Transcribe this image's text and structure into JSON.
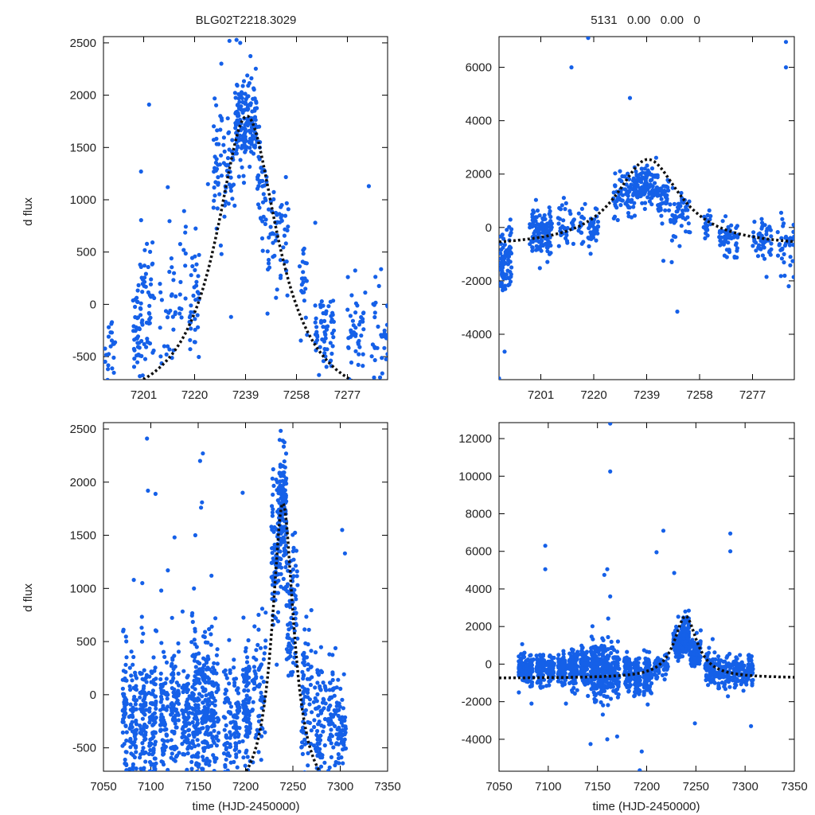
{
  "figure": {
    "left_title": "BLG02T2218.3029",
    "right_title": "5131   0.00   0.00   0",
    "ylabel": "d flux",
    "xlabel": "time (HJD-2450000)",
    "colors": {
      "points": "#1560e8",
      "model": "#111111",
      "frame": "#000000"
    }
  },
  "chart_data": [
    {
      "id": "top-left",
      "type": "scatter",
      "title": "BLG02T2218.3029",
      "xlim": [
        7186,
        7292
      ],
      "ylim": [
        -720,
        2560
      ],
      "xticks": [
        7201,
        7220,
        7239,
        7258,
        7277
      ],
      "yticks": [
        -500,
        0,
        500,
        1000,
        1500,
        2000,
        2500
      ],
      "ylabel": "d flux",
      "model": {
        "t0": 7239.5,
        "peak": 1800,
        "base": -1050,
        "width": 14
      },
      "observation_blocks": [
        {
          "t0": 7186.5,
          "t1": 7190.5,
          "mean": -420,
          "sd": 240,
          "n": 22
        },
        {
          "t0": 7197,
          "t1": 7205,
          "mean": -100,
          "sd": 330,
          "n": 90
        },
        {
          "t0": 7207,
          "t1": 7213,
          "mean": -80,
          "sd": 280,
          "n": 30
        },
        {
          "t0": 7214,
          "t1": 7217,
          "mean": 150,
          "sd": 300,
          "n": 14
        },
        {
          "t0": 7218,
          "t1": 7222,
          "mean": 50,
          "sd": 280,
          "n": 35
        },
        {
          "t0": 7227,
          "t1": 7235,
          "mean": 1250,
          "sd": 380,
          "n": 75
        },
        {
          "t0": 7235,
          "t1": 7243,
          "mean": 1750,
          "sd": 230,
          "n": 160
        },
        {
          "t0": 7243,
          "t1": 7247,
          "mean": 1200,
          "sd": 280,
          "n": 40
        },
        {
          "t0": 7247,
          "t1": 7255,
          "mean": 600,
          "sd": 300,
          "n": 55
        },
        {
          "t0": 7259,
          "t1": 7262,
          "mean": 250,
          "sd": 350,
          "n": 22
        },
        {
          "t0": 7265,
          "t1": 7272,
          "mean": -280,
          "sd": 230,
          "n": 60
        },
        {
          "t0": 7277,
          "t1": 7284,
          "mean": -230,
          "sd": 260,
          "n": 45
        },
        {
          "t0": 7286,
          "t1": 7292,
          "mean": -250,
          "sd": 240,
          "n": 35
        }
      ],
      "outliers": [
        [
          7203,
          1910
        ],
        [
          7233,
          2520
        ],
        [
          7237,
          2500
        ],
        [
          7210,
          1120
        ],
        [
          7285,
          1130
        ],
        [
          7200,
          1270
        ],
        [
          7265,
          780
        ],
        [
          7225,
          1150
        ]
      ]
    },
    {
      "id": "top-right",
      "type": "scatter",
      "title": "5131   0.00   0.00   0",
      "xlim": [
        7186,
        7292
      ],
      "ylim": [
        -5700,
        7150
      ],
      "xticks": [
        7201,
        7220,
        7239,
        7258,
        7277
      ],
      "yticks": [
        -4000,
        -2000,
        0,
        2000,
        4000,
        6000
      ],
      "model": {
        "t0": 7239.5,
        "peak": 2550,
        "base": -750,
        "width": 14
      },
      "observation_blocks": [
        {
          "t0": 7186.5,
          "t1": 7190.5,
          "mean": -1300,
          "sd": 650,
          "n": 80
        },
        {
          "t0": 7197,
          "t1": 7205,
          "mean": -250,
          "sd": 500,
          "n": 120
        },
        {
          "t0": 7207,
          "t1": 7213,
          "mean": -50,
          "sd": 400,
          "n": 35
        },
        {
          "t0": 7214,
          "t1": 7217,
          "mean": 0,
          "sd": 400,
          "n": 14
        },
        {
          "t0": 7218,
          "t1": 7222,
          "mean": -50,
          "sd": 400,
          "n": 35
        },
        {
          "t0": 7227,
          "t1": 7235,
          "mean": 1300,
          "sd": 450,
          "n": 80
        },
        {
          "t0": 7235,
          "t1": 7243,
          "mean": 1650,
          "sd": 350,
          "n": 120
        },
        {
          "t0": 7243,
          "t1": 7247,
          "mean": 1000,
          "sd": 350,
          "n": 40
        },
        {
          "t0": 7247,
          "t1": 7255,
          "mean": 500,
          "sd": 400,
          "n": 50
        },
        {
          "t0": 7259,
          "t1": 7262,
          "mean": 0,
          "sd": 400,
          "n": 18
        },
        {
          "t0": 7265,
          "t1": 7272,
          "mean": -500,
          "sd": 400,
          "n": 55
        },
        {
          "t0": 7277,
          "t1": 7284,
          "mean": -550,
          "sd": 450,
          "n": 55
        },
        {
          "t0": 7286,
          "t1": 7292,
          "mean": -600,
          "sd": 500,
          "n": 40
        }
      ],
      "outliers": [
        [
          7186,
          -5650
        ],
        [
          7188,
          -4650
        ],
        [
          7212,
          6000
        ],
        [
          7218,
          7100
        ],
        [
          7233,
          4850
        ],
        [
          7289,
          6950
        ],
        [
          7289,
          6000
        ],
        [
          7250,
          -3150
        ],
        [
          7248,
          -1300
        ],
        [
          7245,
          -1250
        ],
        [
          7290,
          -2200
        ]
      ]
    },
    {
      "id": "bottom-left",
      "type": "scatter",
      "xlim": [
        7050,
        7350
      ],
      "ylim": [
        -720,
        2560
      ],
      "xticks": [
        7050,
        7100,
        7150,
        7200,
        7250,
        7300,
        7350
      ],
      "yticks": [
        -500,
        0,
        500,
        1000,
        1500,
        2000,
        2500
      ],
      "ylabel": "d flux",
      "xlabel": "time (HJD-2450000)",
      "model": {
        "t0": 7239.5,
        "peak": 1800,
        "base": -1050,
        "width": 14
      },
      "observation_blocks": [
        {
          "t0": 7070,
          "t1": 7075,
          "mean": -200,
          "sd": 370,
          "n": 55
        },
        {
          "t0": 7077,
          "t1": 7085,
          "mean": -250,
          "sd": 300,
          "n": 70
        },
        {
          "t0": 7088,
          "t1": 7096,
          "mean": -180,
          "sd": 350,
          "n": 75
        },
        {
          "t0": 7098,
          "t1": 7106,
          "mean": -230,
          "sd": 330,
          "n": 80
        },
        {
          "t0": 7110,
          "t1": 7118,
          "mean": -220,
          "sd": 300,
          "n": 75
        },
        {
          "t0": 7121,
          "t1": 7130,
          "mean": -150,
          "sd": 330,
          "n": 85
        },
        {
          "t0": 7133,
          "t1": 7141,
          "mean": -250,
          "sd": 300,
          "n": 80
        },
        {
          "t0": 7143,
          "t1": 7152,
          "mean": -150,
          "sd": 370,
          "n": 120
        },
        {
          "t0": 7153,
          "t1": 7162,
          "mean": -120,
          "sd": 360,
          "n": 120
        },
        {
          "t0": 7163,
          "t1": 7172,
          "mean": -200,
          "sd": 350,
          "n": 85
        },
        {
          "t0": 7177,
          "t1": 7185,
          "mean": -250,
          "sd": 300,
          "n": 60
        },
        {
          "t0": 7187,
          "t1": 7194,
          "mean": -300,
          "sd": 260,
          "n": 55
        },
        {
          "t0": 7197,
          "t1": 7205,
          "mean": -50,
          "sd": 350,
          "n": 85
        },
        {
          "t0": 7207,
          "t1": 7222,
          "mean": 100,
          "sd": 350,
          "n": 60
        },
        {
          "t0": 7227,
          "t1": 7235,
          "mean": 1250,
          "sd": 400,
          "n": 75
        },
        {
          "t0": 7235,
          "t1": 7243,
          "mean": 1700,
          "sd": 300,
          "n": 150
        },
        {
          "t0": 7243,
          "t1": 7255,
          "mean": 800,
          "sd": 380,
          "n": 85
        },
        {
          "t0": 7259,
          "t1": 7270,
          "mean": -50,
          "sd": 380,
          "n": 75
        },
        {
          "t0": 7272,
          "t1": 7285,
          "mean": -250,
          "sd": 280,
          "n": 70
        },
        {
          "t0": 7287,
          "t1": 7298,
          "mean": -260,
          "sd": 250,
          "n": 70
        },
        {
          "t0": 7298,
          "t1": 7306,
          "mean": -350,
          "sd": 230,
          "n": 45
        }
      ],
      "outliers": [
        [
          7096,
          2410
        ],
        [
          7097,
          1920
        ],
        [
          7105,
          1890
        ],
        [
          7125,
          1480
        ],
        [
          7147,
          1500
        ],
        [
          7155,
          2270
        ],
        [
          7152,
          2200
        ],
        [
          7154,
          1810
        ],
        [
          7153,
          1760
        ],
        [
          7197,
          1900
        ],
        [
          7302,
          1550
        ],
        [
          7305,
          1330
        ],
        [
          7082,
          1080
        ],
        [
          7091,
          1050
        ],
        [
          7118,
          1170
        ],
        [
          7164,
          1120
        ],
        [
          7111,
          980
        ]
      ]
    },
    {
      "id": "bottom-right",
      "type": "scatter",
      "xlim": [
        7050,
        7350
      ],
      "ylim": [
        -5700,
        12850
      ],
      "xticks": [
        7050,
        7100,
        7150,
        7200,
        7250,
        7300,
        7350
      ],
      "yticks": [
        -4000,
        -2000,
        0,
        2000,
        4000,
        6000,
        8000,
        10000,
        12000
      ],
      "xlabel": "time (HJD-2450000)",
      "model": {
        "t0": 7239.5,
        "peak": 2550,
        "base": -750,
        "width": 14
      },
      "observation_blocks": [
        {
          "t0": 7070,
          "t1": 7076,
          "mean": -200,
          "sd": 450,
          "n": 60
        },
        {
          "t0": 7077,
          "t1": 7085,
          "mean": -300,
          "sd": 350,
          "n": 70
        },
        {
          "t0": 7088,
          "t1": 7096,
          "mean": -250,
          "sd": 400,
          "n": 80
        },
        {
          "t0": 7098,
          "t1": 7106,
          "mean": -300,
          "sd": 350,
          "n": 70
        },
        {
          "t0": 7110,
          "t1": 7118,
          "mean": -300,
          "sd": 400,
          "n": 80
        },
        {
          "t0": 7121,
          "t1": 7130,
          "mean": -250,
          "sd": 500,
          "n": 90
        },
        {
          "t0": 7133,
          "t1": 7141,
          "mean": -300,
          "sd": 600,
          "n": 90
        },
        {
          "t0": 7143,
          "t1": 7152,
          "mean": -250,
          "sd": 800,
          "n": 130
        },
        {
          "t0": 7153,
          "t1": 7162,
          "mean": -250,
          "sd": 800,
          "n": 130
        },
        {
          "t0": 7163,
          "t1": 7172,
          "mean": -300,
          "sd": 700,
          "n": 90
        },
        {
          "t0": 7177,
          "t1": 7185,
          "mean": -400,
          "sd": 450,
          "n": 60
        },
        {
          "t0": 7187,
          "t1": 7194,
          "mean": -700,
          "sd": 500,
          "n": 65
        },
        {
          "t0": 7197,
          "t1": 7205,
          "mean": -600,
          "sd": 600,
          "n": 85
        },
        {
          "t0": 7207,
          "t1": 7222,
          "mean": -200,
          "sd": 400,
          "n": 60
        },
        {
          "t0": 7227,
          "t1": 7235,
          "mean": 1200,
          "sd": 500,
          "n": 75
        },
        {
          "t0": 7235,
          "t1": 7243,
          "mean": 1600,
          "sd": 450,
          "n": 140
        },
        {
          "t0": 7243,
          "t1": 7255,
          "mean": 700,
          "sd": 450,
          "n": 80
        },
        {
          "t0": 7259,
          "t1": 7270,
          "mean": -150,
          "sd": 450,
          "n": 70
        },
        {
          "t0": 7272,
          "t1": 7285,
          "mean": -400,
          "sd": 450,
          "n": 70
        },
        {
          "t0": 7287,
          "t1": 7298,
          "mean": -400,
          "sd": 400,
          "n": 70
        },
        {
          "t0": 7298,
          "t1": 7308,
          "mean": -450,
          "sd": 450,
          "n": 55
        }
      ],
      "outliers": [
        [
          7163,
          12800
        ],
        [
          7163,
          10250
        ],
        [
          7097,
          6300
        ],
        [
          7097,
          5050
        ],
        [
          7160,
          5050
        ],
        [
          7157,
          4750
        ],
        [
          7163,
          3600
        ],
        [
          7217,
          7100
        ],
        [
          7210,
          5950
        ],
        [
          7285,
          6950
        ],
        [
          7285,
          6000
        ],
        [
          7228,
          4850
        ],
        [
          7195,
          -4650
        ],
        [
          7193,
          -5650
        ],
        [
          7143,
          -4250
        ],
        [
          7160,
          -4000
        ],
        [
          7170,
          -3850
        ],
        [
          7249,
          -3150
        ],
        [
          7306,
          -3300
        ],
        [
          7083,
          -2100
        ],
        [
          7118,
          -2100
        ]
      ]
    }
  ]
}
